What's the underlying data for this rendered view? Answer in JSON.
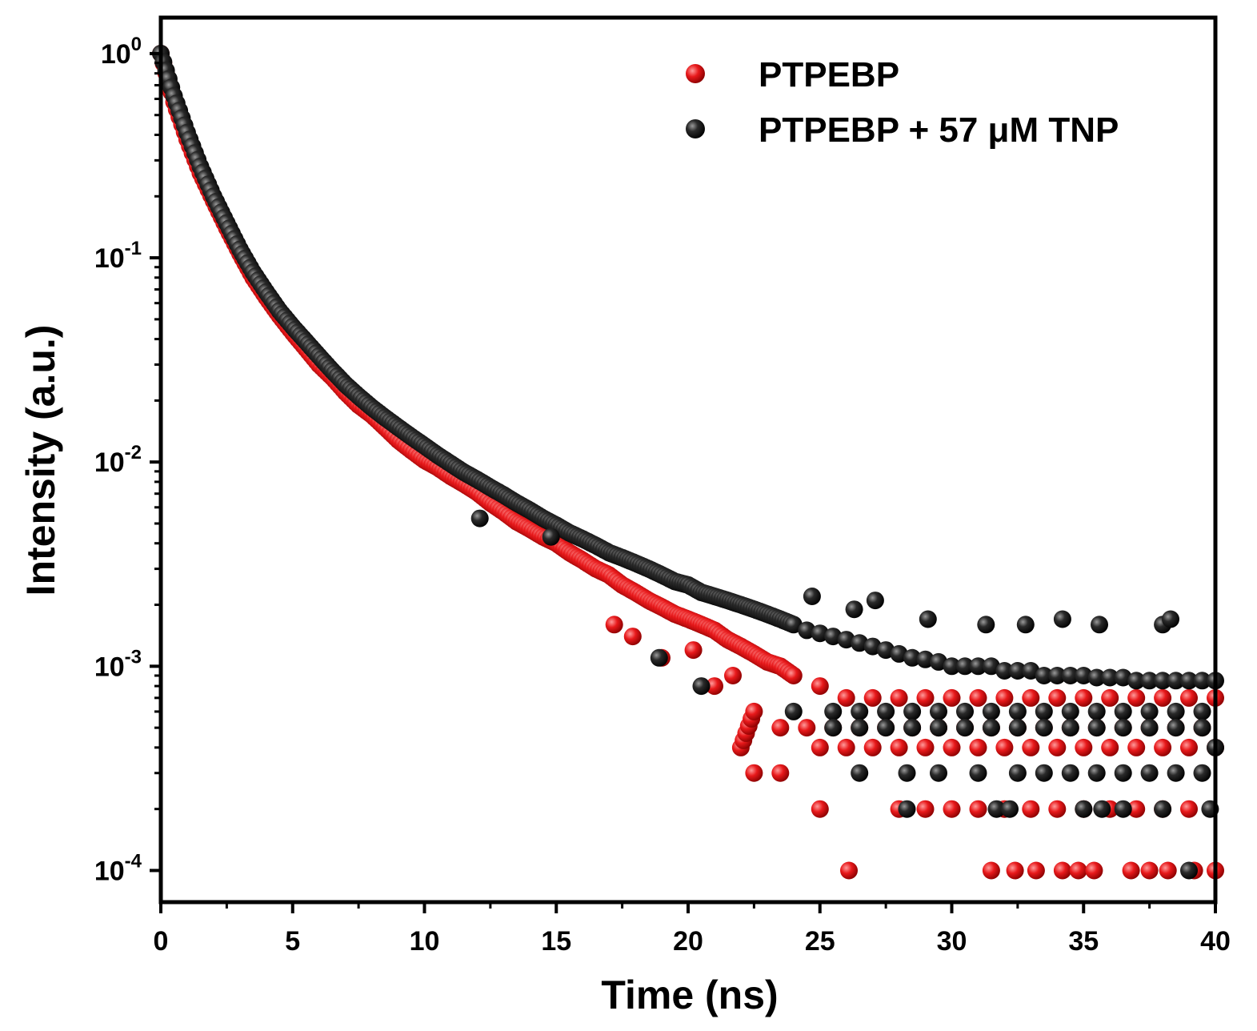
{
  "chart_data": {
    "type": "scatter",
    "title": "",
    "xlabel": "Time (ns)",
    "ylabel": "Intensity (a.u.)",
    "xlim": [
      0,
      40
    ],
    "ylim": [
      7e-05,
      1.5
    ],
    "yscale": "log",
    "x_ticks": [
      0,
      5,
      10,
      15,
      20,
      25,
      30,
      35,
      40
    ],
    "x_tick_labels": [
      "0",
      "5",
      "10",
      "15",
      "20",
      "25",
      "30",
      "35",
      "40"
    ],
    "y_ticks": [
      1,
      0.1,
      0.01,
      0.001,
      0.0001
    ],
    "y_tick_labels": [
      {
        "base": "10",
        "exp": "0"
      },
      {
        "base": "10",
        "exp": "-1"
      },
      {
        "base": "10",
        "exp": "-2"
      },
      {
        "base": "10",
        "exp": "-3"
      },
      {
        "base": "10",
        "exp": "-4"
      }
    ],
    "legend_position": "top-right",
    "series": [
      {
        "name": "PTPEBP",
        "color": "#e8191b",
        "x": [
          0,
          0.5,
          1,
          1.5,
          2,
          2.5,
          3,
          3.5,
          4,
          4.5,
          5,
          5.5,
          6,
          6.5,
          7,
          7.5,
          8,
          8.5,
          9,
          9.5,
          10,
          10.5,
          11,
          11.5,
          12,
          12.5,
          13,
          13.5,
          14,
          14.5,
          15,
          15.5,
          16,
          16.5,
          17,
          17.5,
          18,
          18.5,
          19,
          19.5,
          20,
          20.5,
          21,
          21.5,
          22,
          22.5,
          23,
          23.5,
          24,
          25,
          26,
          27,
          28,
          29,
          30,
          31,
          32,
          33,
          34,
          35,
          36,
          37,
          38,
          39,
          40,
          22,
          22.5,
          23.5,
          24.5,
          25.5,
          26.5,
          27.5,
          28.5,
          29.5,
          30.5,
          31.5,
          32.5,
          33.5,
          34.5,
          35.5,
          36.5,
          37.5,
          38.5,
          39.5,
          22.5,
          23.5,
          25,
          26,
          27,
          28,
          29,
          30,
          31,
          32,
          33,
          34,
          35,
          36,
          37,
          38,
          39,
          40,
          25,
          28,
          29,
          30,
          31,
          32,
          33,
          34,
          35,
          36,
          37,
          38,
          39,
          26.1,
          31.5,
          32.4,
          33.2,
          34.2,
          34.8,
          35.4,
          36.8,
          37.5,
          38.2,
          39.2,
          40,
          17.2,
          17.9,
          19,
          20.2,
          21,
          21.7
        ],
        "y": [
          1.0,
          0.58,
          0.38,
          0.26,
          0.19,
          0.14,
          0.105,
          0.08,
          0.064,
          0.052,
          0.043,
          0.036,
          0.03,
          0.026,
          0.022,
          0.019,
          0.017,
          0.0148,
          0.0128,
          0.0114,
          0.0102,
          0.0094,
          0.0085,
          0.0078,
          0.0071,
          0.0063,
          0.0057,
          0.0051,
          0.0047,
          0.0043,
          0.004,
          0.0036,
          0.0033,
          0.003,
          0.0028,
          0.0025,
          0.0023,
          0.0021,
          0.00195,
          0.0018,
          0.0017,
          0.0016,
          0.0015,
          0.00135,
          0.00125,
          0.00115,
          0.00105,
          0.001,
          0.0009,
          0.0008,
          0.0007,
          0.0007,
          0.0007,
          0.0007,
          0.0007,
          0.0007,
          0.0007,
          0.0007,
          0.0007,
          0.0007,
          0.0007,
          0.0007,
          0.0007,
          0.0007,
          0.0007,
          0.0004,
          0.0006,
          0.0005,
          0.0005,
          0.0005,
          0.0005,
          0.0005,
          0.0005,
          0.0005,
          0.0005,
          0.0005,
          0.0005,
          0.0005,
          0.0005,
          0.0005,
          0.0005,
          0.0005,
          0.0005,
          0.0005,
          0.0003,
          0.0003,
          0.0004,
          0.0004,
          0.0004,
          0.0004,
          0.0004,
          0.0004,
          0.0004,
          0.0004,
          0.0004,
          0.0004,
          0.0004,
          0.0004,
          0.0004,
          0.0004,
          0.0004,
          0.0004,
          0.0002,
          0.0002,
          0.0002,
          0.0002,
          0.0002,
          0.0002,
          0.0002,
          0.0002,
          0.0002,
          0.0002,
          0.0002,
          0.0002,
          0.0002,
          0.0001,
          0.0001,
          0.0001,
          0.0001,
          0.0001,
          0.0001,
          0.0001,
          0.0001,
          0.0001,
          0.0001,
          0.0001,
          0.0001,
          0.0016,
          0.0014,
          0.0011,
          0.0012,
          0.0008,
          0.0009
        ]
      },
      {
        "name": "PTPEBP + 57 μM TNP",
        "color": "#1a1a1a",
        "x": [
          0,
          0.5,
          1,
          1.5,
          2,
          2.5,
          3,
          3.5,
          4,
          4.5,
          5,
          5.5,
          6,
          6.5,
          7,
          7.5,
          8,
          8.5,
          9,
          9.5,
          10,
          10.5,
          11,
          11.5,
          12,
          12.5,
          13,
          13.5,
          14,
          14.5,
          15,
          15.5,
          16,
          16.5,
          17,
          17.5,
          18,
          18.5,
          19,
          19.5,
          20,
          20.5,
          21,
          21.5,
          22,
          22.5,
          23,
          23.5,
          24,
          24.5,
          25,
          25.5,
          26,
          26.5,
          27,
          27.5,
          28,
          28.5,
          29,
          29.5,
          30,
          30.5,
          31,
          31.5,
          32,
          32.5,
          33,
          33.5,
          34,
          34.5,
          35,
          35.5,
          36,
          36.5,
          37,
          37.5,
          38,
          38.5,
          39,
          39.5,
          40,
          12.1,
          14.8,
          18.9,
          20.5,
          24.7,
          26.3,
          27.1,
          29.1,
          31.3,
          32.8,
          34.2,
          35.6,
          38,
          38.3,
          24,
          25.5,
          26.5,
          27.5,
          28.5,
          29.5,
          30.5,
          31.5,
          32.5,
          33.5,
          34.5,
          35.5,
          36.5,
          37.5,
          38.5,
          39.5,
          25.5,
          26.5,
          27.5,
          28.5,
          29.5,
          30.5,
          31.5,
          32.5,
          33.5,
          34.5,
          35.5,
          36.5,
          37.5,
          38.5,
          39.5,
          26.5,
          28.3,
          29.5,
          31,
          32.5,
          33.5,
          34.5,
          35.5,
          36.5,
          37.5,
          38.5,
          39.5,
          28.3,
          31.7,
          32.2,
          35,
          35.7,
          36.5,
          38,
          39.8,
          39,
          40
        ],
        "y": [
          1.0,
          0.62,
          0.41,
          0.28,
          0.2,
          0.148,
          0.11,
          0.085,
          0.068,
          0.055,
          0.046,
          0.039,
          0.033,
          0.028,
          0.024,
          0.021,
          0.0185,
          0.0165,
          0.0148,
          0.0133,
          0.012,
          0.0108,
          0.0098,
          0.0089,
          0.0082,
          0.0075,
          0.0069,
          0.0063,
          0.0058,
          0.0053,
          0.0049,
          0.0045,
          0.0042,
          0.0039,
          0.0036,
          0.0034,
          0.0032,
          0.003,
          0.0028,
          0.0026,
          0.0025,
          0.0023,
          0.0022,
          0.0021,
          0.002,
          0.0019,
          0.0018,
          0.0017,
          0.0016,
          0.0015,
          0.00145,
          0.0014,
          0.00135,
          0.0013,
          0.00125,
          0.0012,
          0.00115,
          0.0011,
          0.00108,
          0.00105,
          0.001,
          0.001,
          0.001,
          0.001,
          0.00095,
          0.00095,
          0.00095,
          0.0009,
          0.0009,
          0.0009,
          0.0009,
          0.00088,
          0.00088,
          0.00088,
          0.00085,
          0.00085,
          0.00085,
          0.00085,
          0.00085,
          0.00085,
          0.00085,
          0.0053,
          0.0043,
          0.0011,
          0.0008,
          0.0022,
          0.0019,
          0.0021,
          0.0017,
          0.0016,
          0.0016,
          0.0017,
          0.0016,
          0.0016,
          0.0017,
          0.0006,
          0.0006,
          0.0006,
          0.0006,
          0.0006,
          0.0006,
          0.0006,
          0.0006,
          0.0006,
          0.0006,
          0.0006,
          0.0006,
          0.0006,
          0.0006,
          0.0006,
          0.0006,
          0.0005,
          0.0005,
          0.0005,
          0.0005,
          0.0005,
          0.0005,
          0.0005,
          0.0005,
          0.0005,
          0.0005,
          0.0005,
          0.0005,
          0.0005,
          0.0005,
          0.0005,
          0.0003,
          0.0003,
          0.0003,
          0.0003,
          0.0003,
          0.0003,
          0.0003,
          0.0003,
          0.0003,
          0.0003,
          0.0003,
          0.0003,
          0.0002,
          0.0002,
          0.0002,
          0.0002,
          0.0002,
          0.0002,
          0.0002,
          0.0002,
          0.0001,
          0.0004
        ]
      }
    ]
  }
}
